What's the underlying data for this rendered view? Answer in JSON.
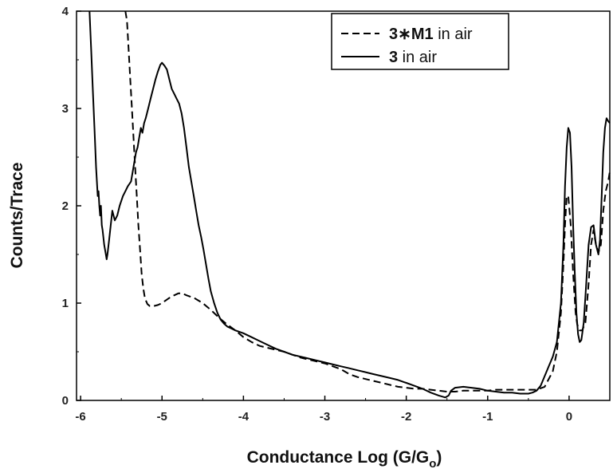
{
  "chart_data": {
    "type": "line",
    "xlabel": "Conductance Log (G/G",
    "xlabel_sub": "o",
    "xlabel_close": ")",
    "ylabel": "Counts/Trace",
    "xlim": [
      -6.05,
      0.5
    ],
    "ylim": [
      0,
      4
    ],
    "x_ticks": [
      "-6",
      "-5",
      "-4",
      "-3",
      "-2",
      "-1",
      "0"
    ],
    "y_ticks": [
      "0",
      "1",
      "2",
      "3",
      "4"
    ],
    "grid": false,
    "legend_position": "top-right",
    "series": [
      {
        "id": "dashed",
        "name_bold": "3∗M1",
        "name_rest": " in air",
        "style": "dashed",
        "color": "#000000",
        "points": [
          [
            -5.45,
            4.0
          ],
          [
            -5.43,
            3.9
          ],
          [
            -5.41,
            3.6
          ],
          [
            -5.39,
            3.3
          ],
          [
            -5.37,
            3.0
          ],
          [
            -5.35,
            2.7
          ],
          [
            -5.33,
            2.4
          ],
          [
            -5.31,
            2.1
          ],
          [
            -5.29,
            1.8
          ],
          [
            -5.27,
            1.55
          ],
          [
            -5.25,
            1.3
          ],
          [
            -5.23,
            1.15
          ],
          [
            -5.21,
            1.05
          ],
          [
            -5.18,
            0.99
          ],
          [
            -5.15,
            0.97
          ],
          [
            -5.1,
            0.97
          ],
          [
            -5.05,
            0.98
          ],
          [
            -5.0,
            1.0
          ],
          [
            -4.95,
            1.03
          ],
          [
            -4.9,
            1.06
          ],
          [
            -4.85,
            1.08
          ],
          [
            -4.8,
            1.1
          ],
          [
            -4.75,
            1.1
          ],
          [
            -4.7,
            1.08
          ],
          [
            -4.6,
            1.05
          ],
          [
            -4.5,
            1.0
          ],
          [
            -4.4,
            0.93
          ],
          [
            -4.3,
            0.85
          ],
          [
            -4.2,
            0.78
          ],
          [
            -4.1,
            0.72
          ],
          [
            -4.0,
            0.65
          ],
          [
            -3.9,
            0.6
          ],
          [
            -3.8,
            0.56
          ],
          [
            -3.7,
            0.54
          ],
          [
            -3.6,
            0.52
          ],
          [
            -3.5,
            0.5
          ],
          [
            -3.4,
            0.47
          ],
          [
            -3.3,
            0.44
          ],
          [
            -3.2,
            0.42
          ],
          [
            -3.1,
            0.4
          ],
          [
            -3.0,
            0.38
          ],
          [
            -2.9,
            0.35
          ],
          [
            -2.8,
            0.32
          ],
          [
            -2.7,
            0.27
          ],
          [
            -2.6,
            0.24
          ],
          [
            -2.5,
            0.22
          ],
          [
            -2.4,
            0.2
          ],
          [
            -2.3,
            0.18
          ],
          [
            -2.2,
            0.16
          ],
          [
            -2.1,
            0.14
          ],
          [
            -2.0,
            0.13
          ],
          [
            -1.9,
            0.12
          ],
          [
            -1.8,
            0.12
          ],
          [
            -1.7,
            0.11
          ],
          [
            -1.6,
            0.1
          ],
          [
            -1.5,
            0.09
          ],
          [
            -1.4,
            0.09
          ],
          [
            -1.3,
            0.1
          ],
          [
            -1.2,
            0.1
          ],
          [
            -1.1,
            0.1
          ],
          [
            -1.0,
            0.1
          ],
          [
            -0.9,
            0.11
          ],
          [
            -0.8,
            0.11
          ],
          [
            -0.7,
            0.11
          ],
          [
            -0.6,
            0.11
          ],
          [
            -0.5,
            0.11
          ],
          [
            -0.4,
            0.11
          ],
          [
            -0.3,
            0.14
          ],
          [
            -0.2,
            0.3
          ],
          [
            -0.15,
            0.5
          ],
          [
            -0.1,
            0.9
          ],
          [
            -0.07,
            1.4
          ],
          [
            -0.05,
            1.8
          ],
          [
            -0.03,
            2.1
          ],
          [
            -0.01,
            2.1
          ],
          [
            0.02,
            1.8
          ],
          [
            0.05,
            1.3
          ],
          [
            0.08,
            0.9
          ],
          [
            0.1,
            0.78
          ],
          [
            0.13,
            0.72
          ],
          [
            0.16,
            0.72
          ],
          [
            0.2,
            0.8
          ],
          [
            0.24,
            1.2
          ],
          [
            0.27,
            1.6
          ],
          [
            0.3,
            1.75
          ],
          [
            0.33,
            1.6
          ],
          [
            0.36,
            1.52
          ],
          [
            0.39,
            1.6
          ],
          [
            0.42,
            1.95
          ],
          [
            0.45,
            2.15
          ],
          [
            0.48,
            2.25
          ],
          [
            0.5,
            2.35
          ]
        ]
      },
      {
        "id": "solid",
        "name_bold": "3",
        "name_rest": " in air",
        "style": "solid",
        "color": "#000000",
        "points": [
          [
            -5.89,
            4.0
          ],
          [
            -5.87,
            3.6
          ],
          [
            -5.85,
            3.2
          ],
          [
            -5.83,
            2.8
          ],
          [
            -5.81,
            2.4
          ],
          [
            -5.79,
            2.1
          ],
          [
            -5.78,
            2.15
          ],
          [
            -5.77,
            2.0
          ],
          [
            -5.76,
            1.9
          ],
          [
            -5.75,
            2.0
          ],
          [
            -5.74,
            1.8
          ],
          [
            -5.73,
            1.75
          ],
          [
            -5.71,
            1.6
          ],
          [
            -5.69,
            1.5
          ],
          [
            -5.68,
            1.45
          ],
          [
            -5.67,
            1.5
          ],
          [
            -5.65,
            1.65
          ],
          [
            -5.63,
            1.8
          ],
          [
            -5.61,
            1.95
          ],
          [
            -5.58,
            1.85
          ],
          [
            -5.55,
            1.9
          ],
          [
            -5.52,
            2.0
          ],
          [
            -5.48,
            2.1
          ],
          [
            -5.45,
            2.15
          ],
          [
            -5.42,
            2.2
          ],
          [
            -5.38,
            2.25
          ],
          [
            -5.35,
            2.4
          ],
          [
            -5.32,
            2.55
          ],
          [
            -5.3,
            2.6
          ],
          [
            -5.28,
            2.7
          ],
          [
            -5.26,
            2.8
          ],
          [
            -5.24,
            2.75
          ],
          [
            -5.22,
            2.85
          ],
          [
            -5.2,
            2.9
          ],
          [
            -5.17,
            3.0
          ],
          [
            -5.14,
            3.1
          ],
          [
            -5.11,
            3.2
          ],
          [
            -5.08,
            3.3
          ],
          [
            -5.05,
            3.38
          ],
          [
            -5.02,
            3.45
          ],
          [
            -5.0,
            3.47
          ],
          [
            -4.97,
            3.44
          ],
          [
            -4.94,
            3.4
          ],
          [
            -4.91,
            3.3
          ],
          [
            -4.88,
            3.2
          ],
          [
            -4.85,
            3.15
          ],
          [
            -4.82,
            3.1
          ],
          [
            -4.79,
            3.05
          ],
          [
            -4.76,
            2.95
          ],
          [
            -4.73,
            2.8
          ],
          [
            -4.7,
            2.6
          ],
          [
            -4.67,
            2.4
          ],
          [
            -4.64,
            2.25
          ],
          [
            -4.61,
            2.1
          ],
          [
            -4.58,
            1.95
          ],
          [
            -4.55,
            1.8
          ],
          [
            -4.52,
            1.68
          ],
          [
            -4.49,
            1.55
          ],
          [
            -4.46,
            1.4
          ],
          [
            -4.43,
            1.25
          ],
          [
            -4.4,
            1.12
          ],
          [
            -4.36,
            1.0
          ],
          [
            -4.32,
            0.9
          ],
          [
            -4.28,
            0.83
          ],
          [
            -4.24,
            0.79
          ],
          [
            -4.2,
            0.76
          ],
          [
            -4.15,
            0.74
          ],
          [
            -4.1,
            0.72
          ],
          [
            -4.0,
            0.69
          ],
          [
            -3.9,
            0.65
          ],
          [
            -3.8,
            0.61
          ],
          [
            -3.7,
            0.57
          ],
          [
            -3.6,
            0.53
          ],
          [
            -3.5,
            0.5
          ],
          [
            -3.4,
            0.47
          ],
          [
            -3.3,
            0.45
          ],
          [
            -3.2,
            0.43
          ],
          [
            -3.1,
            0.41
          ],
          [
            -3.0,
            0.39
          ],
          [
            -2.9,
            0.37
          ],
          [
            -2.8,
            0.35
          ],
          [
            -2.7,
            0.33
          ],
          [
            -2.6,
            0.31
          ],
          [
            -2.5,
            0.29
          ],
          [
            -2.4,
            0.27
          ],
          [
            -2.3,
            0.25
          ],
          [
            -2.2,
            0.23
          ],
          [
            -2.1,
            0.21
          ],
          [
            -2.0,
            0.18
          ],
          [
            -1.9,
            0.15
          ],
          [
            -1.8,
            0.12
          ],
          [
            -1.7,
            0.08
          ],
          [
            -1.6,
            0.05
          ],
          [
            -1.52,
            0.03
          ],
          [
            -1.48,
            0.05
          ],
          [
            -1.45,
            0.1
          ],
          [
            -1.4,
            0.13
          ],
          [
            -1.3,
            0.14
          ],
          [
            -1.2,
            0.13
          ],
          [
            -1.1,
            0.12
          ],
          [
            -1.0,
            0.1
          ],
          [
            -0.9,
            0.09
          ],
          [
            -0.8,
            0.08
          ],
          [
            -0.7,
            0.08
          ],
          [
            -0.6,
            0.07
          ],
          [
            -0.5,
            0.07
          ],
          [
            -0.45,
            0.08
          ],
          [
            -0.4,
            0.1
          ],
          [
            -0.35,
            0.15
          ],
          [
            -0.3,
            0.25
          ],
          [
            -0.25,
            0.35
          ],
          [
            -0.2,
            0.45
          ],
          [
            -0.15,
            0.6
          ],
          [
            -0.1,
            1.0
          ],
          [
            -0.07,
            1.6
          ],
          [
            -0.05,
            2.2
          ],
          [
            -0.03,
            2.6
          ],
          [
            -0.01,
            2.8
          ],
          [
            0.01,
            2.75
          ],
          [
            0.03,
            2.4
          ],
          [
            0.05,
            1.8
          ],
          [
            0.07,
            1.3
          ],
          [
            0.09,
            0.9
          ],
          [
            0.11,
            0.68
          ],
          [
            0.13,
            0.6
          ],
          [
            0.15,
            0.62
          ],
          [
            0.18,
            0.8
          ],
          [
            0.21,
            1.2
          ],
          [
            0.24,
            1.6
          ],
          [
            0.27,
            1.78
          ],
          [
            0.3,
            1.8
          ],
          [
            0.33,
            1.6
          ],
          [
            0.36,
            1.5
          ],
          [
            0.38,
            1.65
          ],
          [
            0.4,
            2.1
          ],
          [
            0.42,
            2.55
          ],
          [
            0.44,
            2.8
          ],
          [
            0.46,
            2.9
          ],
          [
            0.48,
            2.87
          ],
          [
            0.5,
            2.85
          ]
        ]
      }
    ]
  }
}
